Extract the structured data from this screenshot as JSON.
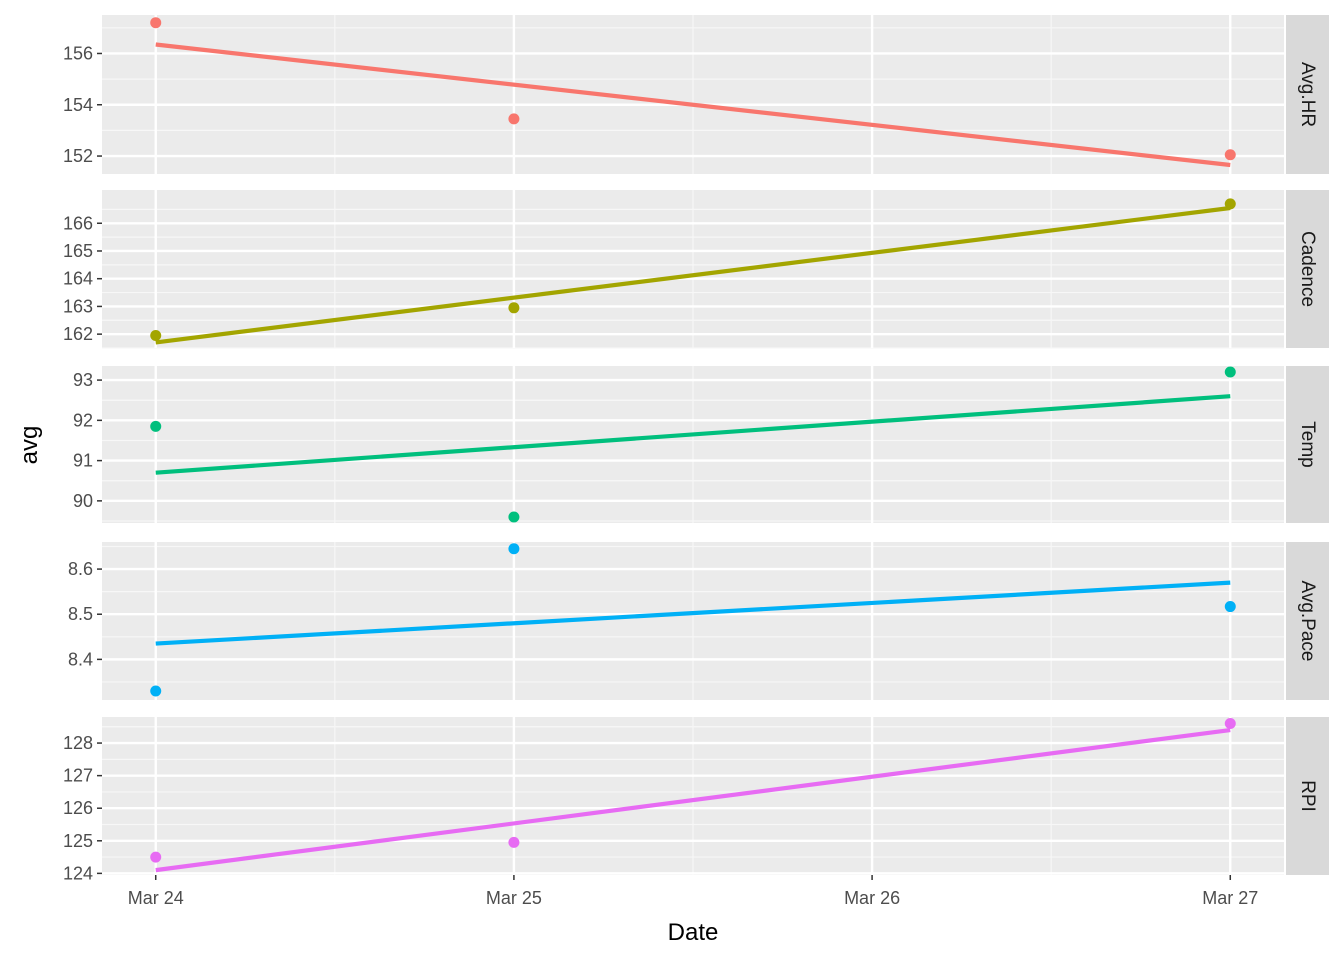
{
  "chart_data": {
    "type": "line",
    "xlabel": "Date",
    "ylabel": "avg",
    "x_ticks": [
      "Mar 24",
      "Mar 25",
      "Mar 26",
      "Mar 27"
    ],
    "x_range": [
      -0.15,
      3.15
    ],
    "grid": true,
    "legend": "none",
    "facets": [
      {
        "name": "Avg.HR",
        "color": "#F8766D",
        "ylim": [
          151.3,
          157.5
        ],
        "yticks": [
          152,
          154,
          156
        ],
        "minor_yticks": [
          153,
          155,
          157
        ],
        "points": [
          {
            "x": "Mar 24",
            "y": 157.2
          },
          {
            "x": "Mar 25",
            "y": 153.45
          },
          {
            "x": "Mar 27",
            "y": 152.05
          }
        ],
        "fit": [
          {
            "x": "Mar 24",
            "y": 156.35
          },
          {
            "x": "Mar 27",
            "y": 151.65
          }
        ]
      },
      {
        "name": "Cadence",
        "color": "#A3A500",
        "ylim": [
          161.5,
          167.2
        ],
        "yticks": [
          162,
          163,
          164,
          165,
          166
        ],
        "minor_yticks": [
          161.5,
          162.5,
          163.5,
          164.5,
          165.5,
          166.5
        ],
        "points": [
          {
            "x": "Mar 24",
            "y": 161.95
          },
          {
            "x": "Mar 25",
            "y": 162.95
          },
          {
            "x": "Mar 27",
            "y": 166.7
          }
        ],
        "fit": [
          {
            "x": "Mar 24",
            "y": 161.7
          },
          {
            "x": "Mar 27",
            "y": 166.55
          }
        ]
      },
      {
        "name": "Temp",
        "color": "#00BF7D",
        "ylim": [
          89.45,
          93.35
        ],
        "yticks": [
          90,
          91,
          92,
          93
        ],
        "minor_yticks": [
          89.5,
          90.5,
          91.5,
          92.5
        ],
        "points": [
          {
            "x": "Mar 24",
            "y": 91.85
          },
          {
            "x": "Mar 25",
            "y": 89.6
          },
          {
            "x": "Mar 27",
            "y": 93.2
          }
        ],
        "fit": [
          {
            "x": "Mar 24",
            "y": 90.7
          },
          {
            "x": "Mar 27",
            "y": 92.6
          }
        ]
      },
      {
        "name": "Avg.Pace",
        "color": "#00B0F6",
        "ylim": [
          8.31,
          8.66
        ],
        "yticks": [
          8.4,
          8.5,
          8.6
        ],
        "minor_yticks": [
          8.35,
          8.45,
          8.55,
          8.65
        ],
        "points": [
          {
            "x": "Mar 24",
            "y": 8.33
          },
          {
            "x": "Mar 25",
            "y": 8.645
          },
          {
            "x": "Mar 27",
            "y": 8.517
          }
        ],
        "fit": [
          {
            "x": "Mar 24",
            "y": 8.435
          },
          {
            "x": "Mar 27",
            "y": 8.57
          }
        ]
      },
      {
        "name": "RPI",
        "color": "#E76BF3",
        "ylim": [
          123.95,
          128.8
        ],
        "yticks": [
          124,
          125,
          126,
          127,
          128
        ],
        "minor_yticks": [
          124.5,
          125.5,
          126.5,
          127.5,
          128.5
        ],
        "points": [
          {
            "x": "Mar 24",
            "y": 124.5
          },
          {
            "x": "Mar 25",
            "y": 124.95
          },
          {
            "x": "Mar 27",
            "y": 128.6
          }
        ],
        "fit": [
          {
            "x": "Mar 24",
            "y": 124.1
          },
          {
            "x": "Mar 27",
            "y": 128.4
          }
        ]
      }
    ]
  }
}
